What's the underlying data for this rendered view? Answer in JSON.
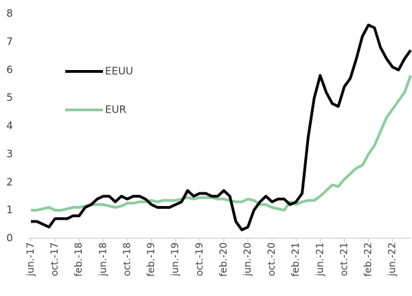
{
  "chart_data": {
    "type": "line",
    "categories": [
      "jun.-17",
      null,
      null,
      null,
      "oct.-17",
      null,
      null,
      null,
      "feb.-18",
      null,
      null,
      null,
      "jun.-18",
      null,
      null,
      null,
      "oct.-18",
      null,
      null,
      null,
      "feb.-19",
      null,
      null,
      null,
      "jun.-19",
      null,
      null,
      null,
      "oct.-19",
      null,
      null,
      null,
      "feb.-20",
      null,
      null,
      null,
      "jun.-20",
      null,
      null,
      null,
      "oct.-20",
      null,
      null,
      null,
      "feb.-21",
      null,
      null,
      null,
      "jun.-21",
      null,
      null,
      null,
      "oct.-21",
      null,
      null,
      null,
      "feb.-22",
      null,
      null,
      null,
      "jun.-22",
      null,
      null,
      null
    ],
    "series": [
      {
        "name": "EEUU",
        "color": "#000000",
        "values": [
          0.6,
          0.6,
          0.5,
          0.4,
          0.7,
          0.7,
          0.7,
          0.8,
          0.8,
          1.1,
          1.2,
          1.4,
          1.5,
          1.5,
          1.3,
          1.5,
          1.4,
          1.5,
          1.5,
          1.4,
          1.2,
          1.1,
          1.1,
          1.1,
          1.2,
          1.3,
          1.7,
          1.5,
          1.6,
          1.6,
          1.5,
          1.5,
          1.7,
          1.5,
          0.6,
          0.3,
          0.4,
          1.0,
          1.3,
          1.5,
          1.3,
          1.4,
          1.4,
          1.2,
          1.3,
          1.6,
          3.6,
          5.0,
          5.8,
          5.2,
          4.8,
          4.7,
          5.4,
          5.7,
          6.4,
          7.2,
          7.6,
          7.5,
          6.8,
          6.4,
          6.1,
          6.0,
          6.4,
          6.7
        ]
      },
      {
        "name": "EUR",
        "color": "#8ecc9e",
        "values": [
          1.0,
          1.0,
          1.05,
          1.1,
          1.0,
          1.0,
          1.05,
          1.1,
          1.1,
          1.15,
          1.2,
          1.2,
          1.2,
          1.15,
          1.1,
          1.15,
          1.25,
          1.25,
          1.3,
          1.3,
          1.35,
          1.3,
          1.35,
          1.35,
          1.35,
          1.4,
          1.45,
          1.4,
          1.45,
          1.45,
          1.45,
          1.4,
          1.4,
          1.35,
          1.3,
          1.3,
          1.4,
          1.35,
          1.2,
          1.2,
          1.1,
          1.05,
          1.0,
          1.3,
          1.2,
          1.3,
          1.35,
          1.35,
          1.5,
          1.7,
          1.9,
          1.85,
          2.1,
          2.3,
          2.5,
          2.6,
          3.0,
          3.3,
          3.8,
          4.3,
          4.6,
          4.9,
          5.2,
          5.8
        ]
      }
    ],
    "ylim": [
      0,
      8
    ],
    "yticks": [
      0,
      1,
      2,
      3,
      4,
      5,
      6,
      7,
      8
    ],
    "grid": false,
    "legend": "upper left"
  }
}
